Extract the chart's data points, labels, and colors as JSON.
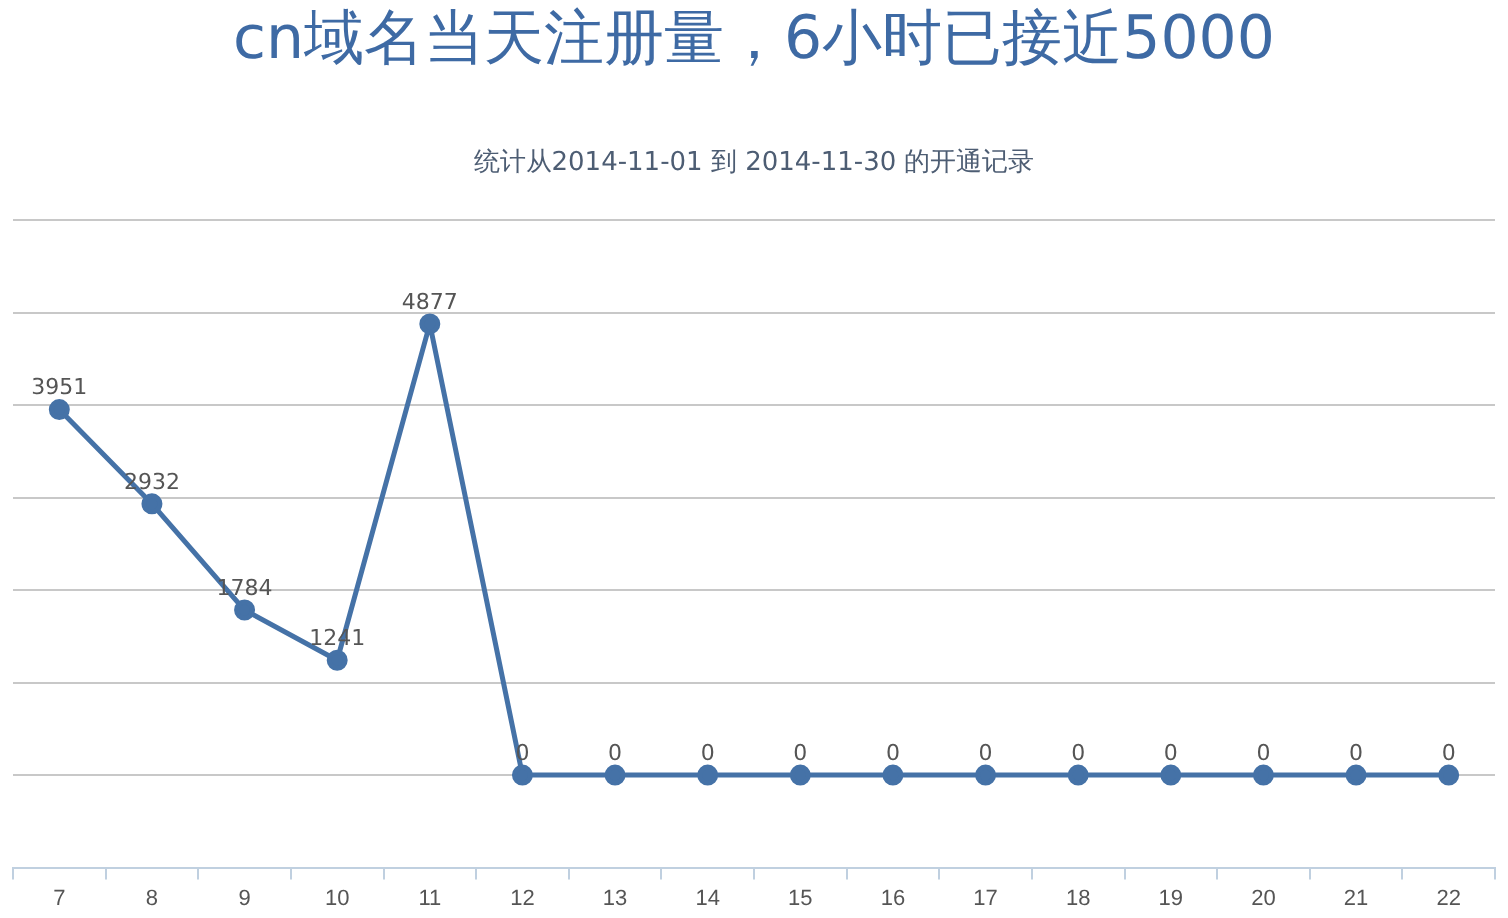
{
  "chart_data": {
    "type": "line",
    "title": "cn域名当天注册量，6小时已接近5000",
    "subtitle": "统计从2014-11-01 到 2014-11-30 的开通记录",
    "categories": [
      "7",
      "8",
      "9",
      "10",
      "11",
      "12",
      "13",
      "14",
      "15",
      "16",
      "17",
      "18",
      "19",
      "20",
      "21",
      "22"
    ],
    "series": [
      {
        "color": "#4572a7",
        "values": [
          3951,
          2932,
          1784,
          1241,
          4877,
          0,
          0,
          0,
          0,
          0,
          0,
          0,
          0,
          0,
          0,
          0
        ]
      }
    ],
    "ylim": [
      -1000,
      6000
    ],
    "yticks": [
      {
        "value": 0,
        "label": null
      },
      {
        "value": 1000,
        "label": null
      },
      {
        "value": 2000,
        "label": null
      },
      {
        "value": 3000,
        "label": null
      },
      {
        "value": 4000,
        "label": null
      },
      {
        "value": 5000,
        "label": null
      },
      {
        "value": 6000,
        "label": null
      }
    ],
    "tick_labels": "x",
    "grid": "y",
    "legend": false,
    "marker": "circle",
    "line_style": "solid",
    "data_labels": true
  }
}
